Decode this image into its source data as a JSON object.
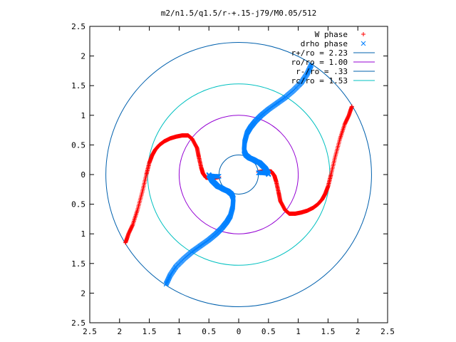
{
  "chart_data": {
    "type": "scatter",
    "title": "m2/n1.5/q1.5/r-+.15-j79/M0.05/512",
    "xlabel": "",
    "ylabel": "",
    "xlim": [
      -2.5,
      2.5
    ],
    "ylim": [
      -2.5,
      2.5
    ],
    "x_ticks": [
      "2.5",
      "2",
      "1.5",
      "1",
      "0.5",
      "0",
      "0.5",
      "1",
      "1.5",
      "2",
      "2.5"
    ],
    "y_ticks": [
      "2.5",
      "2",
      "1.5",
      "1",
      "0.5",
      "0",
      "0.5",
      "1",
      "1.5",
      "2",
      "2.5"
    ],
    "grid": false,
    "legend_position": "top-right",
    "series": [
      {
        "name": "W phase",
        "kind": "points",
        "marker": "+",
        "color": "#ff0000",
        "x": [
          1.9,
          1.85,
          1.78,
          1.7,
          1.62,
          1.55,
          1.5,
          1.45,
          1.4,
          1.33,
          1.25,
          1.15,
          1.05,
          0.95,
          0.85,
          0.78,
          0.7,
          0.67,
          0.63,
          0.6,
          0.55,
          0.48,
          0.4,
          0.33,
          -1.9,
          -1.85,
          -1.78,
          -1.7,
          -1.62,
          -1.55,
          -1.5,
          -1.45,
          -1.4,
          -1.33,
          -1.25,
          -1.15,
          -1.05,
          -0.95,
          -0.85,
          -0.78,
          -0.7,
          -0.67,
          -0.63,
          -0.6,
          -0.55,
          -0.48,
          -0.4,
          -0.33
        ],
        "y": [
          1.15,
          1.0,
          0.85,
          0.6,
          0.3,
          0.0,
          -0.2,
          -0.33,
          -0.42,
          -0.5,
          -0.56,
          -0.61,
          -0.64,
          -0.66,
          -0.66,
          -0.6,
          -0.45,
          -0.3,
          -0.12,
          -0.02,
          0.05,
          0.06,
          0.05,
          0.04,
          -1.15,
          -1.0,
          -0.85,
          -0.6,
          -0.3,
          0.0,
          0.2,
          0.33,
          0.42,
          0.5,
          0.56,
          0.61,
          0.64,
          0.66,
          0.66,
          0.6,
          0.45,
          0.3,
          0.12,
          0.02,
          -0.05,
          -0.06,
          -0.05,
          -0.04
        ]
      },
      {
        "name": "drho phase",
        "kind": "points",
        "marker": "x",
        "color": "#0080ff",
        "x": [
          1.22,
          1.15,
          1.05,
          0.92,
          0.78,
          0.64,
          0.5,
          0.38,
          0.28,
          0.2,
          0.14,
          0.1,
          0.09,
          0.12,
          0.18,
          0.25,
          0.3,
          0.35,
          0.4,
          0.45,
          0.48,
          0.5,
          0.5,
          0.42,
          0.33,
          -1.22,
          -1.15,
          -1.05,
          -0.92,
          -0.78,
          -0.64,
          -0.5,
          -0.38,
          -0.28,
          -0.2,
          -0.14,
          -0.1,
          -0.09,
          -0.12,
          -0.18,
          -0.25,
          -0.3,
          -0.35,
          -0.4,
          -0.45,
          -0.48,
          -0.5,
          -0.5,
          -0.42,
          -0.33
        ],
        "y": [
          1.85,
          1.7,
          1.55,
          1.42,
          1.3,
          1.2,
          1.1,
          1.0,
          0.9,
          0.8,
          0.7,
          0.55,
          0.4,
          0.33,
          0.28,
          0.25,
          0.22,
          0.2,
          0.15,
          0.1,
          0.05,
          0.0,
          0.02,
          0.03,
          0.03,
          -1.85,
          -1.7,
          -1.55,
          -1.42,
          -1.3,
          -1.2,
          -1.1,
          -1.0,
          -0.9,
          -0.8,
          -0.7,
          -0.55,
          -0.4,
          -0.33,
          -0.28,
          -0.25,
          -0.22,
          -0.2,
          -0.15,
          -0.1,
          -0.05,
          0.0,
          -0.02,
          -0.03,
          -0.03
        ]
      },
      {
        "name": "r+/ro = 2.23",
        "kind": "circle",
        "radius": 2.23,
        "color": "#0060ad"
      },
      {
        "name": "ro/ro = 1.00",
        "kind": "circle",
        "radius": 1.0,
        "color": "#9400d3"
      },
      {
        "name": "r-/ro = .33",
        "kind": "circle",
        "radius": 0.33,
        "color": "#0060ad"
      },
      {
        "name": "rc/ro = 1.53",
        "kind": "circle",
        "radius": 1.53,
        "color": "#00c0c0"
      }
    ]
  }
}
